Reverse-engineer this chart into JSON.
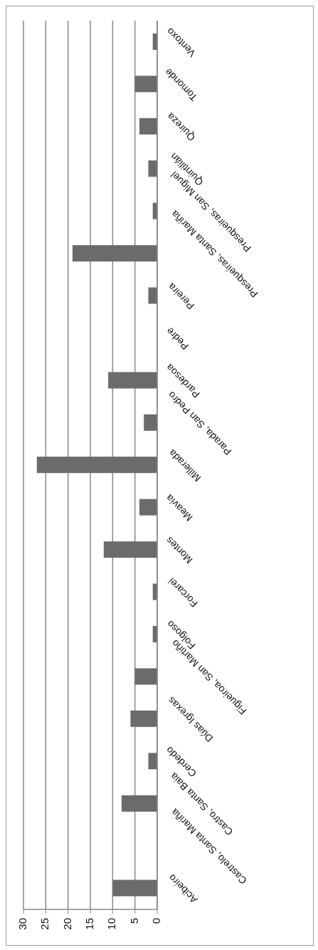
{
  "chart_data": {
    "type": "bar",
    "orientation": "horizontal",
    "categories": [
      "Ventoxo",
      "Tomonde",
      "Quireza",
      "Quintilián",
      "Presqueiras, San Miguel",
      "Presqueiras, Santa Mariña",
      "Pereira",
      "Pedre",
      "Pardesoa",
      "Parada, San Pedro",
      "Millerada",
      "Meavía",
      "Montes",
      "Forcarei",
      "Folgoso",
      "Figueiroa, San Martiño",
      "Dúas Igrexas",
      "Cerdedo",
      "Castro, Santa Baia",
      "Castrelo, Santa Mariña",
      "Acibeiro"
    ],
    "values": [
      1,
      5,
      4,
      2,
      1,
      19,
      2,
      0,
      11,
      3,
      27,
      4,
      12,
      1,
      1,
      5,
      6,
      2,
      8,
      0,
      10
    ],
    "color": "#6b6b6b",
    "xlim": [
      30,
      0
    ],
    "xticks": [
      30,
      25,
      20,
      15,
      10,
      5,
      0
    ],
    "grid": "x"
  }
}
